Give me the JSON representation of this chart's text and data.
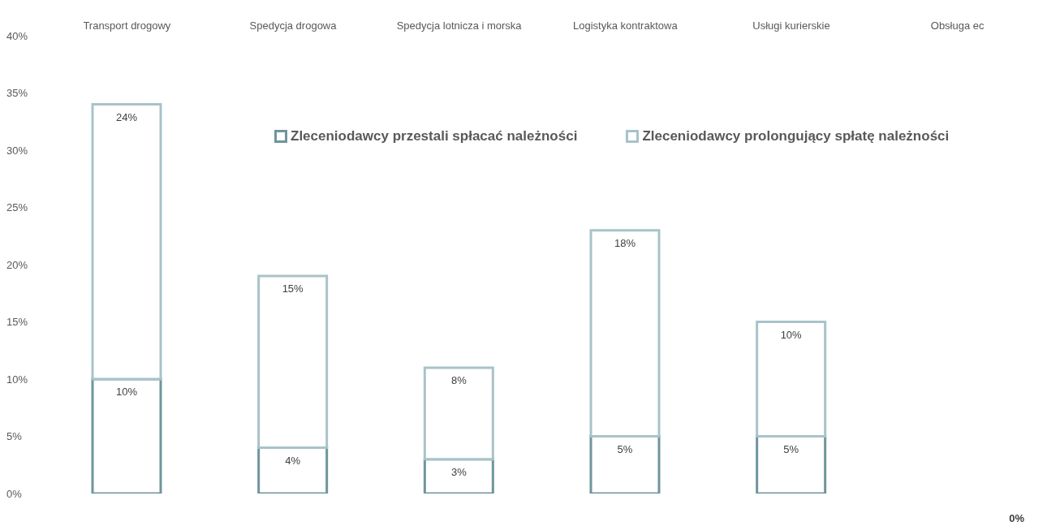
{
  "chart_data": {
    "type": "bar",
    "stacked": true,
    "categories": [
      "Transport drogowy",
      "Spedycja drogowa",
      "Spedycja lotnicza i morska",
      "Logistyka kontraktowa",
      "Usługi kurierskie",
      "Obsługa ec"
    ],
    "series": [
      {
        "name": "Zleceniodawcy przestali spłacać należności",
        "color": "#6f959c",
        "values": [
          10,
          4,
          3,
          5,
          5,
          null
        ],
        "value_labels": [
          "10%",
          "4%",
          "3%",
          "5%",
          "5%",
          null
        ]
      },
      {
        "name": "Zleceniodawcy prolongujący spłatę należności",
        "color": "#a8c3c9",
        "values": [
          24,
          15,
          8,
          18,
          10,
          null
        ],
        "value_labels": [
          "24%",
          "15%",
          "8%",
          "18%",
          "10%",
          null
        ]
      }
    ],
    "ylim": [
      0,
      40
    ],
    "yticks": [
      {
        "value": 0,
        "label": "0%"
      },
      {
        "value": 5,
        "label": "5%"
      },
      {
        "value": 10,
        "label": "10%"
      },
      {
        "value": 15,
        "label": "15%"
      },
      {
        "value": 20,
        "label": "20%"
      },
      {
        "value": 25,
        "label": "25%"
      },
      {
        "value": 30,
        "label": "30%"
      },
      {
        "value": 35,
        "label": "35%"
      },
      {
        "value": 40,
        "label": "40%"
      }
    ],
    "grid": false,
    "legend": "top",
    "annotations": [
      "0%"
    ]
  }
}
